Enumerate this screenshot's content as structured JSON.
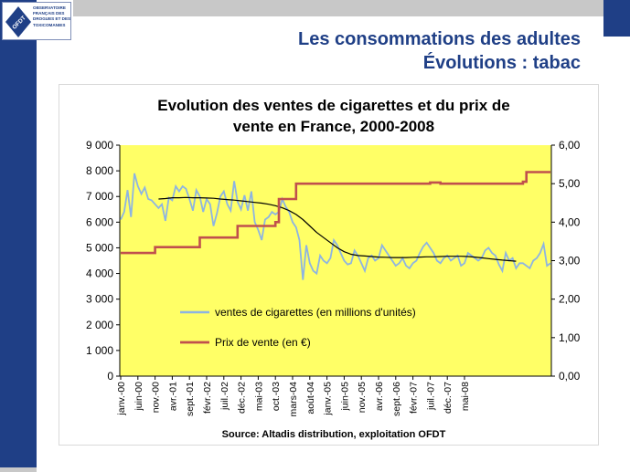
{
  "slide": {
    "title_line1": "Les consommations des adultes",
    "title_line2": "Évolutions : tabac"
  },
  "logo": {
    "mark_text": "OFDT",
    "lines": [
      "OBSERVATOIRE",
      "FRANÇAIS DES",
      "DROGUES ET DES",
      "TOXICOMANIES"
    ],
    "icon": "ofdt-logo-icon"
  },
  "colors": {
    "brand": "#1f3f86",
    "plot_bg": "#ffff66",
    "sales_line": "#8db4e2",
    "price_line": "#c0504d",
    "trend_line": "#000000"
  },
  "chart_data": {
    "type": "line",
    "title": "Evolution des ventes de cigarettes et du prix de vente en France, 2000-2008",
    "source": "Source: Altadis distribution, exploitation OFDT",
    "x_start": "2000-01",
    "x_ticks": [
      "janv.-00",
      "juin-00",
      "nov.-00",
      "avr.-01",
      "sept.-01",
      "févr.-02",
      "juil.-02",
      "déc.-02",
      "mai-03",
      "oct.-03",
      "mars-04",
      "août-04",
      "janv.-05",
      "juin-05",
      "nov.-05",
      "avr.-06",
      "sept.-06",
      "févr.-07",
      "juil.-07",
      "déc.-07",
      "mai-08"
    ],
    "y_left": {
      "min": 0,
      "max": 9000,
      "ticks": [
        "0",
        "1 000",
        "2 000",
        "3 000",
        "4 000",
        "5 000",
        "6 000",
        "7 000",
        "8 000",
        "9 000"
      ]
    },
    "y_right": {
      "min": 0,
      "max": 6,
      "ticks": [
        "0,00",
        "1,00",
        "2,00",
        "3,00",
        "4,00",
        "5,00",
        "6,00"
      ]
    },
    "grid": false,
    "legend_position": "bottom-left",
    "series": [
      {
        "name": "ventes de cigarettes (en millions d'unités)",
        "axis": "left",
        "values": [
          6100,
          6400,
          7250,
          6200,
          7900,
          7400,
          7100,
          7350,
          6900,
          6850,
          6700,
          6550,
          6700,
          6050,
          6950,
          6850,
          7400,
          7200,
          7400,
          7300,
          6900,
          6450,
          7250,
          7000,
          6400,
          6900,
          6700,
          5850,
          6350,
          7000,
          7200,
          6700,
          6450,
          7600,
          6800,
          6500,
          7050,
          6450,
          7200,
          6000,
          5700,
          5300,
          6100,
          6200,
          6400,
          6300,
          6400,
          6900,
          6600,
          6400,
          6000,
          5800,
          5300,
          3750,
          5100,
          4400,
          4100,
          4000,
          4700,
          4500,
          4400,
          4600,
          5300,
          5100,
          4800,
          4500,
          4350,
          4400,
          4900,
          4700,
          4400,
          4100,
          4600,
          4700,
          4500,
          4600,
          5100,
          4900,
          4700,
          4500,
          4300,
          4400,
          4600,
          4300,
          4200,
          4400,
          4500,
          4800,
          5050,
          5200,
          5000,
          4800,
          4500,
          4400,
          4600,
          4700,
          4500,
          4600,
          4700,
          4300,
          4400,
          4800,
          4700,
          4600,
          4500,
          4600,
          4900,
          5000,
          4800,
          4700,
          4350,
          4100,
          4800,
          4500,
          4600,
          4200,
          4400,
          4400,
          4300,
          4200,
          4500,
          4600,
          4800,
          5150,
          4300,
          4400
        ]
      },
      {
        "name": "Prix de vente (en €)",
        "axis": "right",
        "steps": [
          {
            "from": 0,
            "to": 10,
            "value": 3.2
          },
          {
            "from": 10,
            "to": 23,
            "value": 3.35
          },
          {
            "from": 23,
            "to": 34,
            "value": 3.6
          },
          {
            "from": 34,
            "to": 45,
            "value": 3.9
          },
          {
            "from": 45,
            "to": 46,
            "value": 4.0
          },
          {
            "from": 46,
            "to": 48,
            "value": 4.6
          },
          {
            "from": 48,
            "to": 51,
            "value": 4.6
          },
          {
            "from": 51,
            "to": 90,
            "value": 5.0
          },
          {
            "from": 90,
            "to": 91,
            "value": 5.03
          },
          {
            "from": 91,
            "to": 93,
            "value": 5.03
          },
          {
            "from": 93,
            "to": 117,
            "value": 5.0
          },
          {
            "from": 117,
            "to": 118,
            "value": 5.05
          },
          {
            "from": 118,
            "to": 131,
            "value": 5.3
          }
        ]
      },
      {
        "name": "",
        "axis": "left",
        "trend": true,
        "values": [
          6900,
          6920,
          6950,
          6950,
          6960,
          6950,
          6950,
          6940,
          6930,
          6900,
          6880,
          6860,
          6830,
          6800,
          6770,
          6740,
          6700,
          6640,
          6560,
          6450,
          6300,
          6100,
          5850,
          5600,
          5400,
          5200,
          5000,
          4850,
          4750,
          4700,
          4680,
          4660,
          4640,
          4630,
          4620,
          4620,
          4620,
          4630,
          4640,
          4650,
          4650,
          4660,
          4670,
          4670,
          4670,
          4660,
          4640,
          4610,
          4580,
          4550,
          4520,
          4500,
          4480
        ]
      }
    ]
  }
}
